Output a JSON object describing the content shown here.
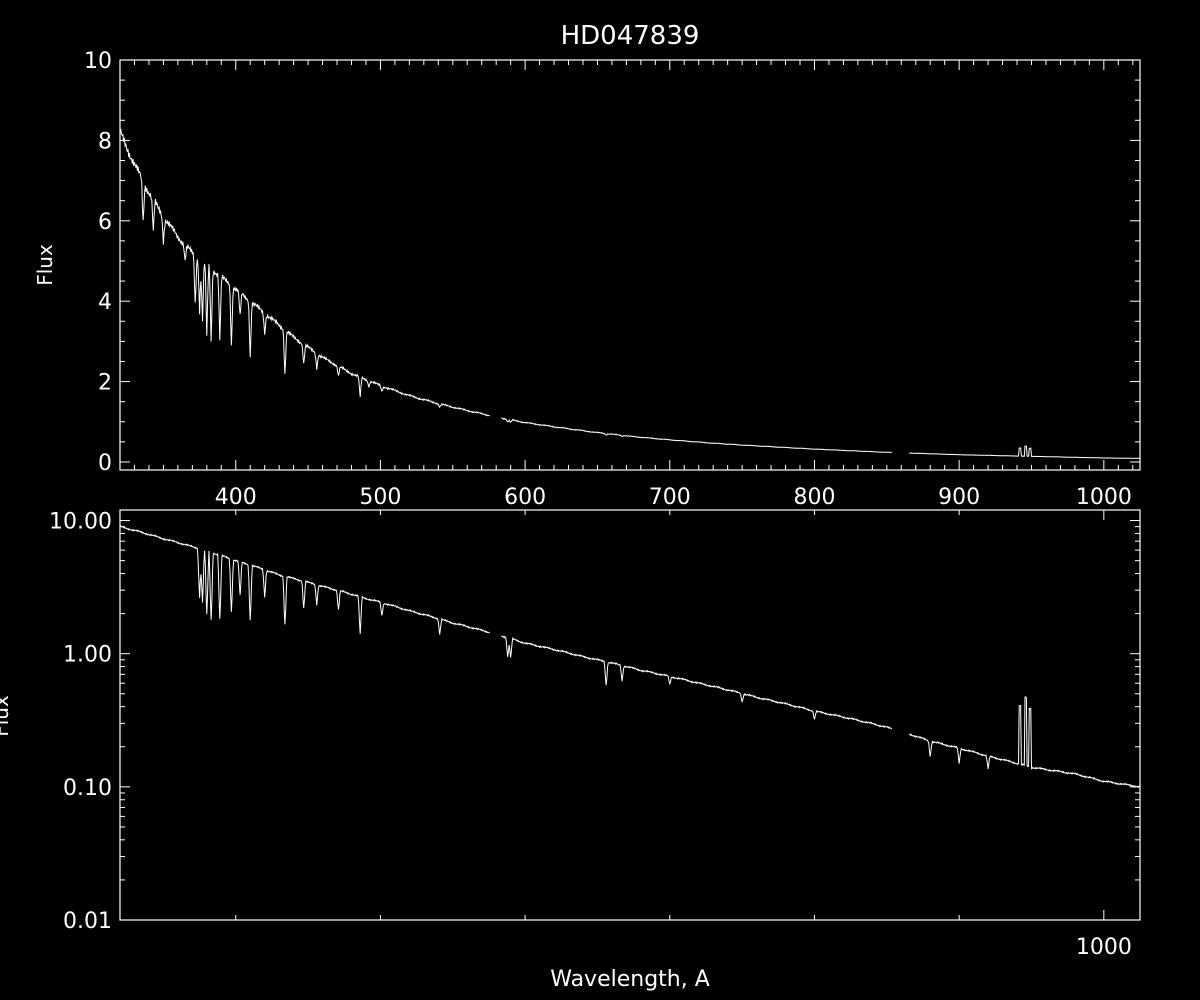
{
  "title": "HD047839",
  "colors": {
    "background": "#000000",
    "foreground": "#ffffff"
  },
  "chart_data": [
    {
      "type": "line",
      "panel": "top",
      "scale": "linear",
      "ylabel": "Flux",
      "xlim": [
        320,
        1025
      ],
      "ylim": [
        -0.2,
        10
      ],
      "x_ticks": [
        400,
        500,
        600,
        700,
        800,
        900,
        1000
      ],
      "x_tick_labels": [
        "400",
        "500",
        "600",
        "700",
        "800",
        "900",
        "1000"
      ],
      "y_ticks": [
        0,
        2,
        4,
        6,
        8,
        10
      ],
      "y_tick_labels": [
        "0",
        "2",
        "4",
        "6",
        "8",
        "10"
      ],
      "series": [
        {
          "continuum": [
            [
              320,
              8.2
            ],
            [
              330,
              7.4
            ],
            [
              340,
              6.7
            ],
            [
              350,
              6.1
            ],
            [
              360,
              5.6
            ],
            [
              370,
              5.2
            ],
            [
              380,
              4.9
            ],
            [
              390,
              4.6
            ],
            [
              400,
              4.3
            ],
            [
              410,
              4.0
            ],
            [
              420,
              3.7
            ],
            [
              430,
              3.4
            ],
            [
              440,
              3.1
            ],
            [
              450,
              2.85
            ],
            [
              460,
              2.6
            ],
            [
              470,
              2.4
            ],
            [
              480,
              2.2
            ],
            [
              490,
              2.05
            ],
            [
              500,
              1.9
            ],
            [
              520,
              1.65
            ],
            [
              540,
              1.45
            ],
            [
              560,
              1.28
            ],
            [
              580,
              1.12
            ],
            [
              600,
              0.98
            ],
            [
              625,
              0.85
            ],
            [
              650,
              0.73
            ],
            [
              675,
              0.63
            ],
            [
              700,
              0.55
            ],
            [
              725,
              0.48
            ],
            [
              750,
              0.42
            ],
            [
              775,
              0.37
            ],
            [
              800,
              0.32
            ],
            [
              825,
              0.28
            ],
            [
              850,
              0.24
            ],
            [
              875,
              0.21
            ],
            [
              900,
              0.18
            ],
            [
              925,
              0.16
            ],
            [
              950,
              0.14
            ],
            [
              975,
              0.12
            ],
            [
              1000,
              0.1
            ],
            [
              1025,
              0.09
            ]
          ],
          "absorption_lines": [
            [
              336,
              1.0
            ],
            [
              343,
              0.8
            ],
            [
              350,
              0.6
            ],
            [
              365,
              0.4
            ],
            [
              372,
              1.2
            ],
            [
              375,
              1.3
            ],
            [
              377,
              1.5
            ],
            [
              380,
              1.8
            ],
            [
              383,
              1.8
            ],
            [
              389,
              1.6
            ],
            [
              397,
              1.5
            ],
            [
              403,
              0.6
            ],
            [
              410,
              1.4
            ],
            [
              420,
              0.5
            ],
            [
              434,
              1.1
            ],
            [
              447,
              0.5
            ],
            [
              456,
              0.4
            ],
            [
              471,
              0.3
            ],
            [
              486,
              0.7
            ],
            [
              492,
              0.2
            ],
            [
              501,
              0.2
            ],
            [
              541,
              0.15
            ],
            [
              588,
              0.2
            ],
            [
              590,
              0.2
            ],
            [
              656,
              0.15
            ],
            [
              667,
              0.1
            ]
          ],
          "gaps": [
            [
              576,
              583
            ],
            [
              854,
              865
            ]
          ],
          "emission_spikes": [
            [
              942,
              0.2
            ],
            [
              946,
              0.25
            ],
            [
              949,
              0.2
            ]
          ]
        }
      ]
    },
    {
      "type": "line",
      "panel": "bottom",
      "scale": "log",
      "xlabel": "Wavelength, A",
      "ylabel": "Flux",
      "xlim": [
        320,
        1025
      ],
      "ylim": [
        0.01,
        12
      ],
      "x_ticks": [
        1000
      ],
      "x_tick_labels": [
        "1000"
      ],
      "y_ticks": [
        0.01,
        0.1,
        1,
        10
      ],
      "y_tick_labels": [
        "0.01",
        "0.10",
        "1.00",
        "10.00"
      ],
      "series": [
        {
          "continuum": [
            [
              320,
              9.0
            ],
            [
              350,
              7.3
            ],
            [
              380,
              5.9
            ],
            [
              400,
              5.0
            ],
            [
              430,
              3.9
            ],
            [
              460,
              3.2
            ],
            [
              490,
              2.6
            ],
            [
              520,
              2.1
            ],
            [
              550,
              1.7
            ],
            [
              580,
              1.4
            ],
            [
              600,
              1.2
            ],
            [
              640,
              0.95
            ],
            [
              680,
              0.75
            ],
            [
              720,
              0.6
            ],
            [
              760,
              0.47
            ],
            [
              800,
              0.37
            ],
            [
              850,
              0.28
            ],
            [
              880,
              0.22
            ],
            [
              920,
              0.17
            ],
            [
              950,
              0.14
            ],
            [
              980,
              0.125
            ],
            [
              1000,
              0.11
            ],
            [
              1025,
              0.1
            ]
          ],
          "absorption_lines": [
            [
              375,
              1.3
            ],
            [
              377,
              1.5
            ],
            [
              380,
              2.0
            ],
            [
              383,
              2.2
            ],
            [
              389,
              2.0
            ],
            [
              397,
              1.5
            ],
            [
              403,
              0.8
            ],
            [
              410,
              1.6
            ],
            [
              420,
              0.6
            ],
            [
              434,
              1.3
            ],
            [
              447,
              0.6
            ],
            [
              456,
              0.4
            ],
            [
              471,
              0.4
            ],
            [
              486,
              0.9
            ],
            [
              501,
              0.25
            ],
            [
              541,
              0.3
            ],
            [
              588,
              0.4
            ],
            [
              590,
              0.4
            ],
            [
              656,
              0.5
            ],
            [
              667,
              0.3
            ],
            [
              700,
              0.15
            ],
            [
              750,
              0.15
            ],
            [
              800,
              0.15
            ],
            [
              880,
              0.3
            ],
            [
              900,
              0.3
            ],
            [
              920,
              0.25
            ]
          ],
          "gaps": [
            [
              576,
              583
            ],
            [
              854,
              865
            ]
          ],
          "emission_spikes": [
            [
              942,
              0.35
            ],
            [
              946,
              0.45
            ],
            [
              949,
              0.35
            ]
          ]
        }
      ]
    }
  ]
}
